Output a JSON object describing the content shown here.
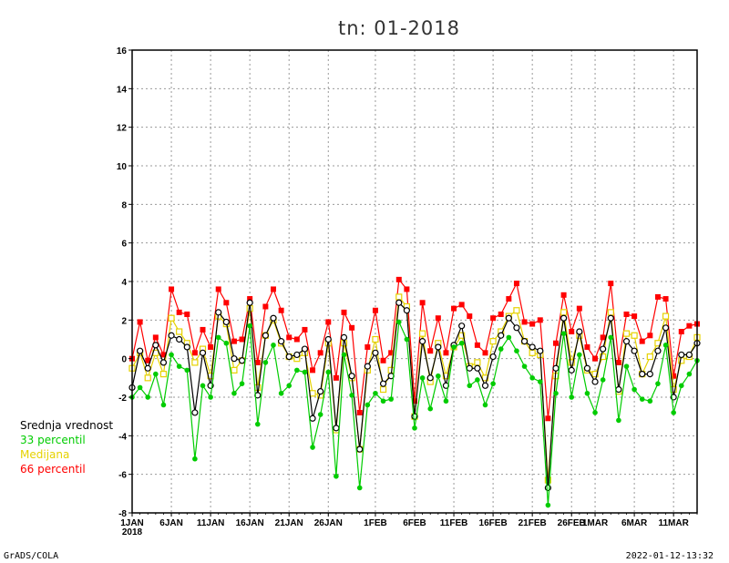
{
  "title": "tn: 01-2018",
  "footer_left": "GrADS/COLA",
  "footer_right": "2022-01-12-13:32",
  "legend": [
    {
      "label": "Srednja vrednost",
      "color": "#000000"
    },
    {
      "label": "33 percentil",
      "color": "#00cc00"
    },
    {
      "label": "Medijana",
      "color": "#e6d200"
    },
    {
      "label": "66 percentil",
      "color": "#ff0000"
    }
  ],
  "chart_data": {
    "type": "line",
    "title": "tn: 01-2018",
    "ylim": [
      -8,
      16
    ],
    "yticks": [
      -8,
      -6,
      -4,
      -2,
      0,
      2,
      4,
      6,
      8,
      10,
      12,
      14,
      16
    ],
    "x_day_range": [
      1,
      73
    ],
    "x_ticks": [
      {
        "day": 1,
        "label": "1JAN",
        "sublabel": "2018"
      },
      {
        "day": 6,
        "label": "6JAN"
      },
      {
        "day": 11,
        "label": "11JAN"
      },
      {
        "day": 16,
        "label": "16JAN"
      },
      {
        "day": 21,
        "label": "21JAN"
      },
      {
        "day": 26,
        "label": "26JAN"
      },
      {
        "day": 32,
        "label": "1FEB"
      },
      {
        "day": 37,
        "label": "6FEB"
      },
      {
        "day": 42,
        "label": "11FEB"
      },
      {
        "day": 47,
        "label": "16FEB"
      },
      {
        "day": 52,
        "label": "21FEB"
      },
      {
        "day": 57,
        "label": "26FEB"
      },
      {
        "day": 60,
        "label": "1MAR"
      },
      {
        "day": 65,
        "label": "6MAR"
      },
      {
        "day": 70,
        "label": "11MAR"
      }
    ],
    "grid": true,
    "series": [
      {
        "name": "66 percentil",
        "color": "#ff0000",
        "marker": "square",
        "values": [
          0.0,
          1.9,
          -0.1,
          1.1,
          0.2,
          3.6,
          2.4,
          2.3,
          0.3,
          1.5,
          0.6,
          3.6,
          2.9,
          0.9,
          1.0,
          3.1,
          -0.2,
          2.7,
          3.6,
          2.5,
          1.1,
          1.0,
          1.5,
          -0.6,
          0.3,
          1.9,
          -1.0,
          2.4,
          1.6,
          -2.8,
          0.6,
          2.5,
          -0.1,
          0.3,
          4.1,
          3.6,
          -2.2,
          2.9,
          0.4,
          2.1,
          0.3,
          2.6,
          2.8,
          2.2,
          0.7,
          0.3,
          2.1,
          2.3,
          3.1,
          3.9,
          1.9,
          1.8,
          2.0,
          -3.1,
          0.8,
          3.3,
          1.4,
          2.6,
          0.6,
          0.0,
          1.1,
          3.9,
          -0.2,
          2.3,
          2.2,
          0.9,
          1.2,
          3.2,
          3.1,
          -0.9,
          1.4,
          1.7,
          1.8
        ]
      },
      {
        "name": "Medijana",
        "color": "#e6d200",
        "marker": "open-square",
        "values": [
          -0.5,
          0.3,
          -1.0,
          0.3,
          -0.8,
          2.1,
          1.4,
          0.8,
          -0.2,
          0.5,
          -0.9,
          2.2,
          1.8,
          -0.6,
          -0.1,
          2.6,
          -1.5,
          1.2,
          2.0,
          0.8,
          0.1,
          0.0,
          0.3,
          -1.8,
          -1.9,
          0.8,
          -3.7,
          0.8,
          -1.0,
          -4.7,
          -0.6,
          1.0,
          -1.6,
          -0.6,
          3.2,
          2.7,
          -3.0,
          1.3,
          -1.2,
          0.8,
          -0.9,
          0.6,
          1.2,
          -0.4,
          -0.2,
          -1.0,
          0.9,
          1.4,
          2.2,
          2.5,
          0.9,
          0.3,
          0.2,
          -6.3,
          -0.9,
          2.4,
          -0.2,
          1.2,
          -0.6,
          -0.8,
          0.1,
          2.4,
          -1.7,
          1.3,
          1.2,
          -0.8,
          0.1,
          0.8,
          2.2,
          -1.6,
          -0.1,
          0.1,
          1.1
        ]
      },
      {
        "name": "Srednja vrednost",
        "color": "#000000",
        "marker": "open-circle",
        "values": [
          -1.5,
          0.4,
          -0.5,
          0.7,
          -0.2,
          1.2,
          1.0,
          0.6,
          -2.8,
          0.3,
          -1.4,
          2.4,
          1.9,
          0.0,
          -0.1,
          2.9,
          -1.9,
          1.2,
          2.1,
          0.9,
          0.1,
          0.2,
          0.5,
          -3.1,
          -1.7,
          1.0,
          -3.6,
          1.1,
          -0.9,
          -4.7,
          -0.4,
          0.3,
          -1.3,
          -0.9,
          2.9,
          2.5,
          -3.0,
          0.9,
          -1.0,
          0.6,
          -1.4,
          0.7,
          1.7,
          -0.5,
          -0.5,
          -1.4,
          0.1,
          1.2,
          2.1,
          1.6,
          0.9,
          0.6,
          0.4,
          -6.7,
          -0.5,
          2.1,
          -0.6,
          1.4,
          -0.5,
          -1.2,
          0.5,
          2.1,
          -1.6,
          0.9,
          0.4,
          -0.8,
          -0.8,
          0.4,
          1.6,
          -2.0,
          0.2,
          0.2,
          0.8
        ]
      },
      {
        "name": "33 percentil",
        "color": "#00cc00",
        "marker": "dot",
        "values": [
          -2.0,
          -1.5,
          -2.0,
          -0.8,
          -2.4,
          0.2,
          -0.4,
          -0.6,
          -5.2,
          -1.4,
          -2.0,
          1.1,
          0.8,
          -1.8,
          -1.3,
          1.7,
          -3.4,
          -0.2,
          0.7,
          -1.8,
          -1.4,
          -0.6,
          -0.7,
          -4.6,
          -2.9,
          -0.7,
          -6.1,
          0.2,
          -1.9,
          -6.7,
          -2.4,
          -1.8,
          -2.2,
          -2.1,
          1.9,
          1.0,
          -3.6,
          -1.0,
          -2.6,
          -0.9,
          -2.2,
          0.6,
          0.8,
          -1.4,
          -1.1,
          -2.4,
          -1.3,
          0.5,
          1.1,
          0.4,
          -0.4,
          -1.0,
          -1.2,
          -7.6,
          -1.8,
          1.3,
          -2.0,
          0.2,
          -1.8,
          -2.8,
          -1.1,
          1.1,
          -3.2,
          -0.4,
          -1.6,
          -2.1,
          -2.2,
          -1.3,
          0.7,
          -2.8,
          -1.4,
          -0.8,
          -0.1
        ]
      }
    ]
  }
}
